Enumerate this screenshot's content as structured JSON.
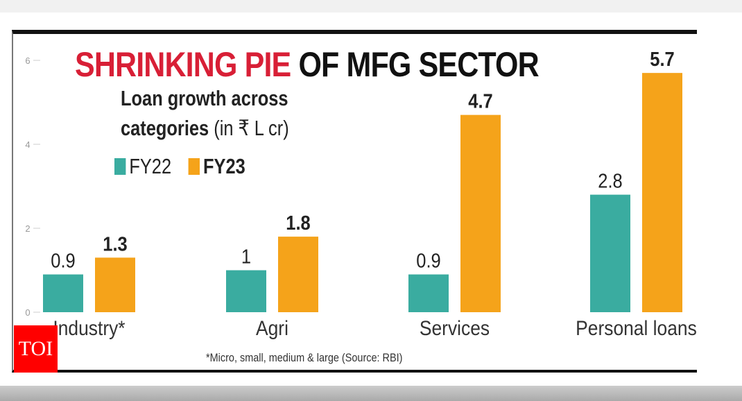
{
  "chart_data": {
    "type": "bar",
    "title_highlight": "SHRINKING PIE",
    "title_rest": "OF MFG SECTOR",
    "subtitle_line1": "Loan growth across",
    "subtitle_line2": "categories",
    "subtitle_unit": "(in ₹ L cr)",
    "categories": [
      "Industry*",
      "Agri",
      "Services",
      "Personal loans"
    ],
    "series": [
      {
        "name": "FY22",
        "color": "#3aaca0",
        "values": [
          0.9,
          1,
          0.9,
          2.8
        ],
        "labels": [
          "0.9",
          "1",
          "0.9",
          "2.8"
        ]
      },
      {
        "name": "FY23",
        "color": "#f5a31a",
        "values": [
          1.3,
          1.8,
          4.7,
          5.7
        ],
        "labels": [
          "1.3",
          "1.8",
          "4.7",
          "5.7"
        ]
      }
    ],
    "yticks": [
      "0",
      "2",
      "4",
      "6"
    ],
    "ylim": [
      0,
      6
    ],
    "grid": false,
    "legend": "top-left",
    "footnote": "*Micro, small, medium & large (Source: RBI)"
  },
  "brand": {
    "logo": "TOI",
    "title_color": "#d81f36",
    "logo_color": "#ff0000"
  }
}
